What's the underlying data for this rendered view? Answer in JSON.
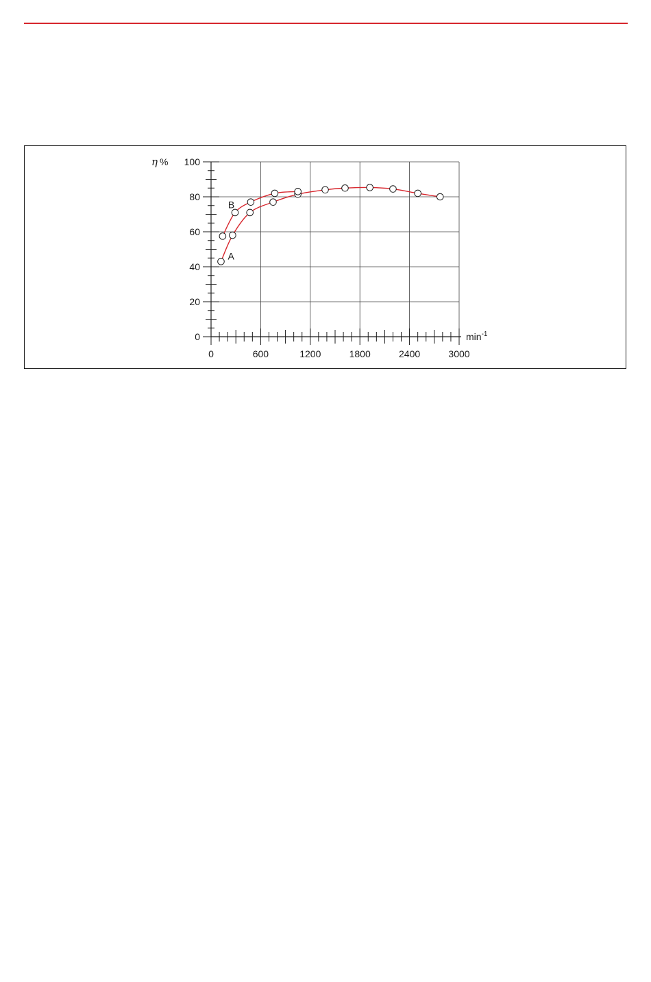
{
  "page": {
    "rule_color": "#d7262d"
  },
  "chart_data": {
    "type": "line",
    "ylabel_symbol": "η",
    "ylabel_unit": "%",
    "xlabel": "min",
    "xlabel_exp": "-1",
    "xlim": [
      0,
      3000
    ],
    "ylim": [
      0,
      100
    ],
    "x_ticks": [
      0,
      600,
      1200,
      1800,
      2400,
      3000
    ],
    "y_ticks": [
      0,
      20,
      40,
      60,
      80,
      100
    ],
    "grid": true,
    "line_color": "#d7262d",
    "marker": "open-circle",
    "series": [
      {
        "name": "A",
        "x": [
          120,
          260,
          470,
          750,
          1050,
          1380,
          1620,
          1920,
          2200,
          2500,
          2770
        ],
        "y": [
          43,
          58,
          71,
          77,
          81.5,
          84,
          85,
          85.3,
          84.5,
          82,
          80
        ]
      },
      {
        "name": "B",
        "x": [
          140,
          290,
          480,
          770,
          1050
        ],
        "y": [
          57.5,
          71,
          77,
          82,
          83
        ]
      }
    ]
  }
}
